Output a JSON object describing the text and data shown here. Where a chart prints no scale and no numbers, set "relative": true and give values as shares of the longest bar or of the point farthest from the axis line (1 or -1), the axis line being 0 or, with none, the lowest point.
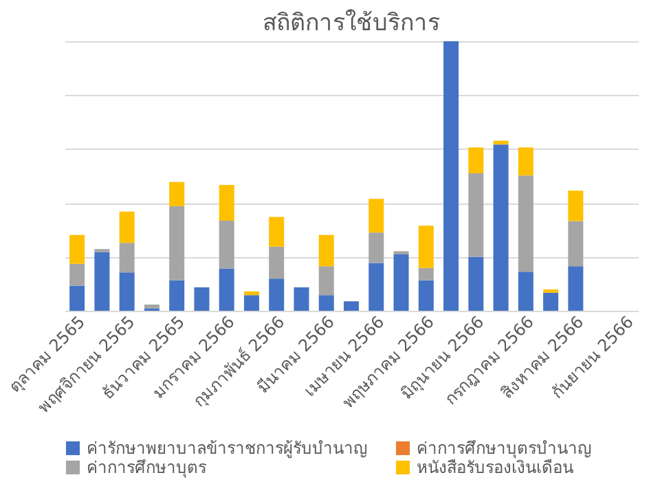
{
  "chart_data": {
    "type": "bar",
    "title": "สถิติการใช้บริการ",
    "stacked": true,
    "relative": true,
    "grid": "y",
    "legend": "bottom",
    "categories": [
      "ตุลาคม 2565",
      null,
      "พฤศจิกายน 2565",
      null,
      "ธันวาคม 2565",
      null,
      "มกราคม 2566",
      null,
      "กุมภาพันธ์ 2566",
      null,
      "มีนาคม 2566",
      null,
      "เมษายน 2566",
      null,
      "พฤษภาคม 2566",
      null,
      "มิถุนายน 2566",
      null,
      "กรกฎาคม 2566",
      null,
      "สิงหาคม 2566",
      null,
      "กันยายน 2566"
    ],
    "series": [
      {
        "name": "ค่ารักษาพยาบาลข้าราชการผู้รับบำนาญ",
        "color": "#4472c4",
        "values": [
          0.093,
          0.217,
          0.142,
          0.009,
          0.113,
          0.087,
          0.157,
          0.058,
          0.119,
          0.087,
          0.058,
          0.035,
          0.177,
          0.209,
          0.113,
          1,
          0.2,
          0.617,
          0.145,
          0.067,
          0.165,
          null,
          null
        ]
      },
      {
        "name": "ค่าการศึกษาบุตรบำนาญ",
        "color": "#ed7d31",
        "values": [
          0,
          0,
          0,
          0,
          0,
          0,
          0,
          0,
          0,
          0,
          0,
          0,
          0,
          0,
          0,
          0,
          0,
          0,
          0,
          0,
          0,
          null,
          null
        ]
      },
      {
        "name": "ค่าการศึกษาบุตร",
        "color": "#a5a5a5",
        "values": [
          0.081,
          0.012,
          0.11,
          0.014,
          0.275,
          0,
          0.177,
          0,
          0.119,
          0,
          0.107,
          0,
          0.113,
          0.012,
          0.046,
          0,
          0.31,
          0,
          0.357,
          0,
          0.168,
          null,
          null
        ]
      },
      {
        "name": "หนังสือรับรองเงินเดือน",
        "color": "#ffc000",
        "values": [
          0.107,
          0,
          0.116,
          0,
          0.09,
          0,
          0.133,
          0.014,
          0.11,
          0,
          0.116,
          0,
          0.125,
          0,
          0.157,
          0,
          0.096,
          0.014,
          0.104,
          0.012,
          0.113,
          null,
          null
        ]
      }
    ]
  }
}
